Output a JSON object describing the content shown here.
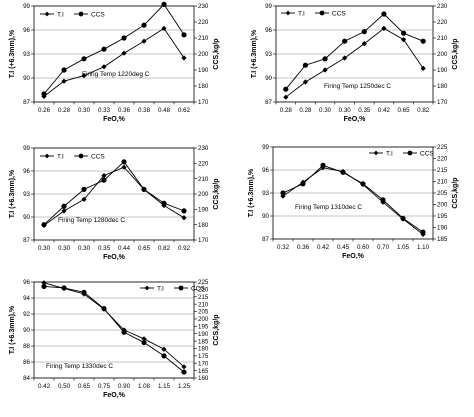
{
  "chart_data": [
    {
      "type": "line",
      "annotation": "Firing Temp 1220deg C",
      "xlabel": "FeO,%",
      "ylabel": "T.I (+6.3mm),%",
      "y2label": "CCS,kg/p",
      "categories": [
        "0.26",
        "0.28",
        "0.30",
        "0.33",
        "0.36",
        "0.38",
        "0.48",
        "0.62"
      ],
      "ylim": [
        87,
        99
      ],
      "yticks": [
        87,
        90,
        93,
        96,
        99
      ],
      "y2lim": [
        170,
        230
      ],
      "y2ticks": [
        170,
        180,
        190,
        200,
        210,
        220,
        230
      ],
      "legend": "top-left",
      "grid": "horizontal",
      "series": [
        {
          "name": "T.I",
          "axis": "left",
          "marker": "diamond",
          "values": [
            87.7,
            89.6,
            90.3,
            91.4,
            93.1,
            94.6,
            96.2,
            92.5
          ]
        },
        {
          "name": "CCS",
          "axis": "right",
          "marker": "circle",
          "values": [
            175,
            190,
            197,
            203,
            210,
            218,
            231,
            212
          ]
        }
      ]
    },
    {
      "type": "line",
      "annotation": "Firing Temp 1250dec C",
      "xlabel": "FeO,%",
      "ylabel": "T.I (+6.3mm),%",
      "y2label": "CCS,kg/p",
      "categories": [
        "0.28",
        "0.28",
        "0.30",
        "0.30",
        "0.35",
        "0.42",
        "0.65",
        "0.82"
      ],
      "ylim": [
        87,
        99
      ],
      "yticks": [
        87,
        90,
        93,
        96,
        99
      ],
      "y2lim": [
        170,
        230
      ],
      "y2ticks": [
        170,
        180,
        190,
        200,
        210,
        220,
        230
      ],
      "legend": "top-left",
      "grid": "horizontal",
      "series": [
        {
          "name": "T.I",
          "axis": "left",
          "marker": "diamond",
          "values": [
            87.6,
            89.5,
            91.0,
            92.5,
            94.3,
            96.2,
            94.8,
            91.2
          ]
        },
        {
          "name": "CCS",
          "axis": "right",
          "marker": "circle",
          "values": [
            178,
            193,
            197,
            208,
            214,
            225,
            213,
            208
          ]
        }
      ]
    },
    {
      "type": "line",
      "annotation": "Firing Temp 1280dec C",
      "xlabel": "FeO,%",
      "ylabel": "T.I (+6.3mm),%",
      "y2label": "CCS,kg/p",
      "categories": [
        "0.30",
        "0.30",
        "0.30",
        "0.35",
        "0.44",
        "0.65",
        "0.82",
        "0.92"
      ],
      "ylim": [
        87,
        99
      ],
      "yticks": [
        87,
        90,
        93,
        96,
        99
      ],
      "y2lim": [
        170,
        230
      ],
      "y2ticks": [
        170,
        180,
        190,
        200,
        210,
        220,
        230
      ],
      "legend": "top-left",
      "grid": "horizontal",
      "series": [
        {
          "name": "T.I",
          "axis": "left",
          "marker": "diamond",
          "values": [
            88.9,
            90.8,
            92.3,
            95.4,
            96.5,
            93.6,
            91.5,
            89.9
          ]
        },
        {
          "name": "CCS",
          "axis": "right",
          "marker": "circle",
          "values": [
            180,
            192,
            203,
            209,
            221,
            203,
            194,
            189
          ]
        }
      ]
    },
    {
      "type": "line",
      "annotation": "Firing Temp 1310dec C",
      "xlabel": "FeO,%",
      "ylabel": "T.I (+6.3mm),%",
      "y2label": "CCS,kg/p",
      "categories": [
        "0.32",
        "0.36",
        "0.42",
        "0.45",
        "0.60",
        "0.70",
        "1.05",
        "1.10"
      ],
      "ylim": [
        87,
        99
      ],
      "yticks": [
        87,
        90,
        93,
        96,
        99
      ],
      "y2lim": [
        185,
        225
      ],
      "y2ticks": [
        185,
        190,
        195,
        200,
        205,
        210,
        215,
        220,
        225
      ],
      "legend": "top-right",
      "grid": "horizontal",
      "series": [
        {
          "name": "T.I",
          "axis": "left",
          "marker": "diamond",
          "values": [
            92.6,
            94.4,
            96.3,
            95.8,
            94.1,
            91.8,
            89.6,
            87.6
          ]
        },
        {
          "name": "CCS",
          "axis": "right",
          "marker": "circle",
          "values": [
            205,
            209,
            217,
            214,
            209,
            202,
            194,
            188
          ]
        }
      ]
    },
    {
      "type": "line",
      "annotation": "Firing Temp 1330dec C",
      "xlabel": "FeO,%",
      "ylabel": "T.I (+6.3mm),%",
      "y2label": "CCS,kg/p",
      "categories": [
        "0.42",
        "0.50",
        "0.65",
        "0.75",
        "0.90",
        "1.08",
        "1.15",
        "1.25"
      ],
      "ylim": [
        84,
        96
      ],
      "yticks": [
        84,
        86,
        88,
        90,
        92,
        94,
        96
      ],
      "y2lim": [
        160,
        225
      ],
      "y2ticks": [
        160,
        165,
        170,
        175,
        180,
        185,
        190,
        195,
        200,
        205,
        210,
        215,
        220,
        225
      ],
      "legend": "top-right",
      "grid": "horizontal",
      "series": [
        {
          "name": "T.I",
          "axis": "left",
          "marker": "diamond",
          "values": [
            95.9,
            95.2,
            94.5,
            92.6,
            90.0,
            88.9,
            87.6,
            85.4
          ]
        },
        {
          "name": "CCS",
          "axis": "right",
          "marker": "circle",
          "values": [
            222,
            221,
            218,
            207,
            191,
            184,
            175,
            164
          ]
        }
      ]
    }
  ]
}
